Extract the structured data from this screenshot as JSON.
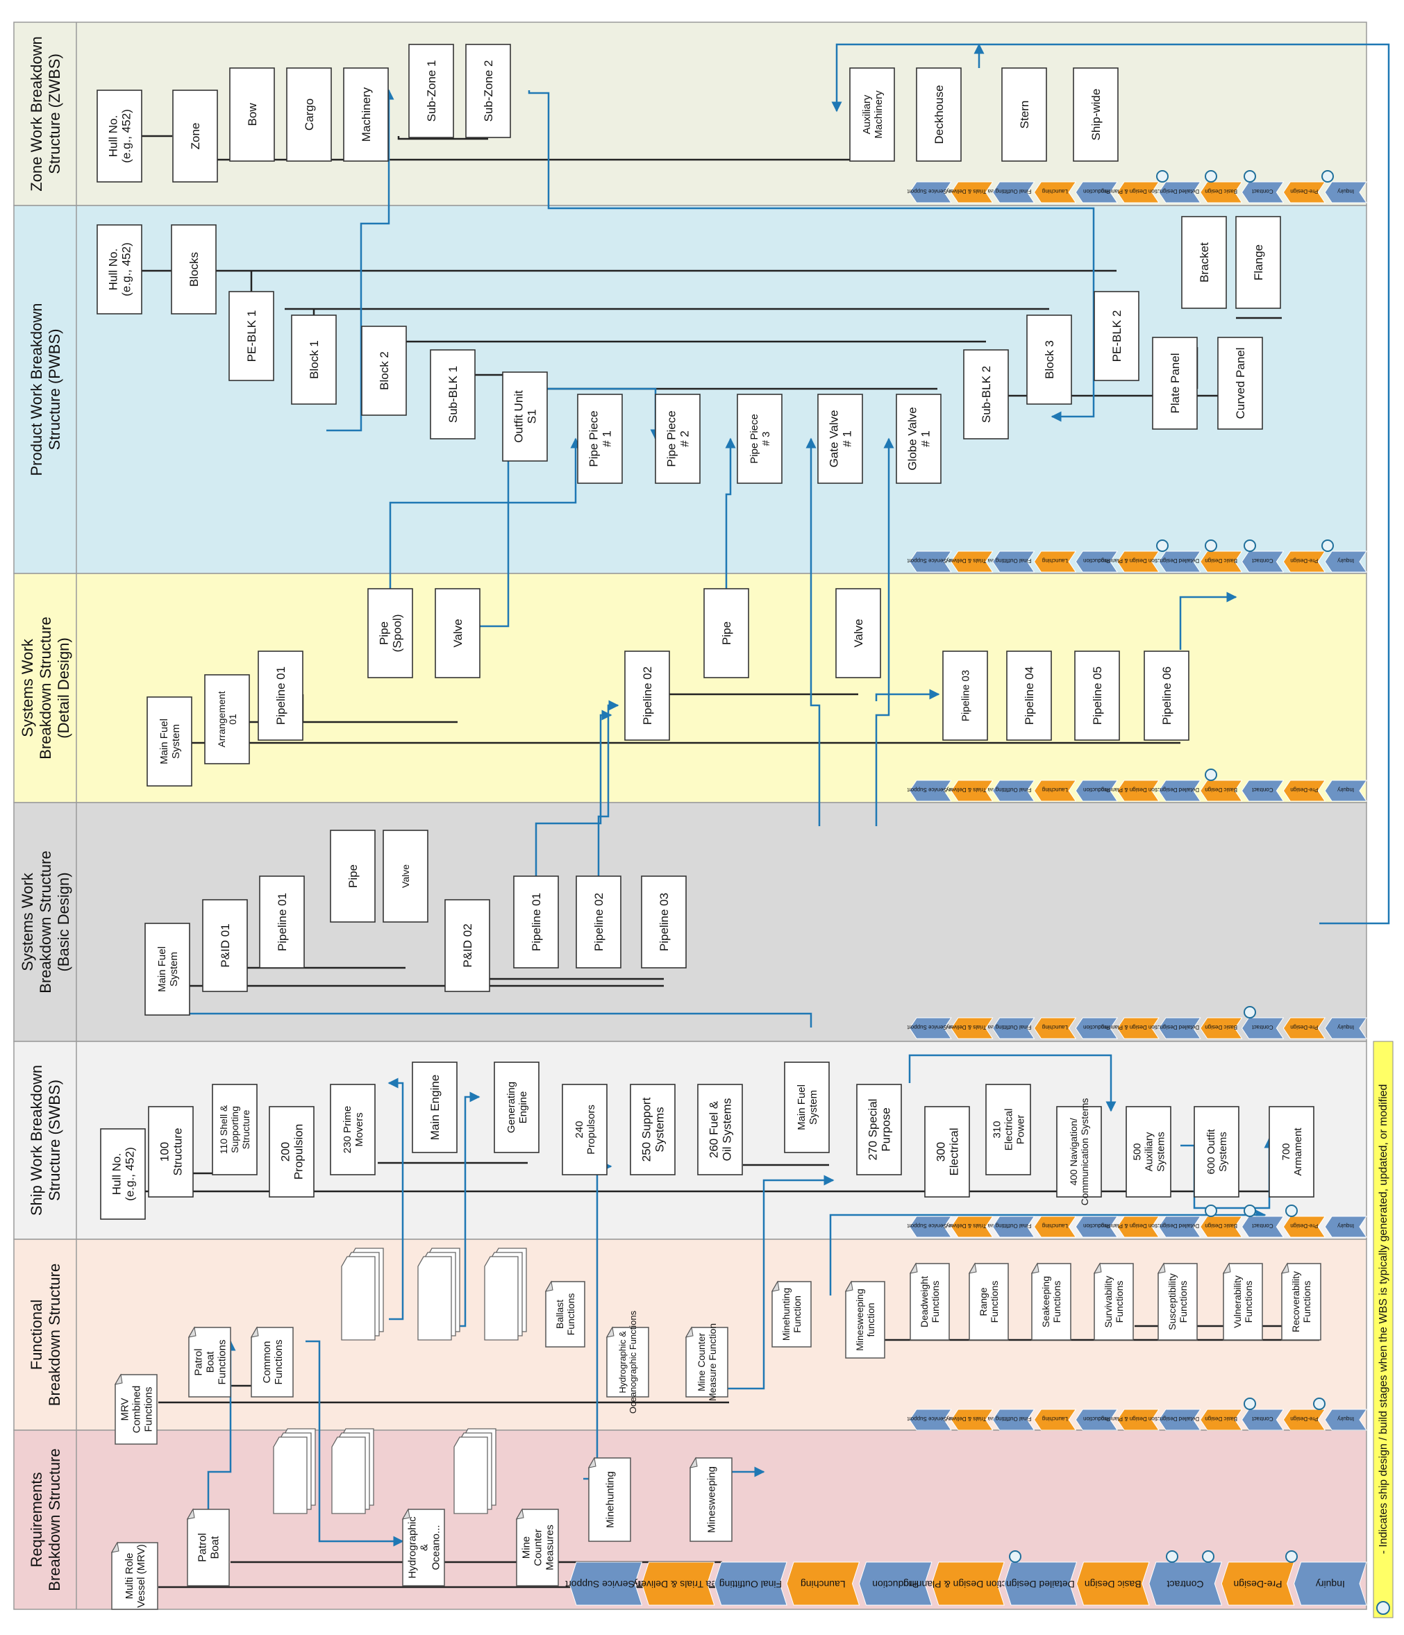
{
  "bands": [
    {
      "id": "zwbs",
      "title": [
        "Zone Work Breakdown",
        "Structure (ZWBS)"
      ],
      "color": "#eef0e2"
    },
    {
      "id": "pwbs",
      "title": [
        "Product Work Breakdown",
        "Structure (PWBS)"
      ],
      "color": "#d3ebf2"
    },
    {
      "id": "swbs_detail",
      "title": [
        "Systems Work",
        "Breakdown Structure",
        "(Detail Design)"
      ],
      "color": "#fdfbc6"
    },
    {
      "id": "swbs_basic",
      "title": [
        "Systems Work",
        "Breakdown Structure",
        "(Basic Design)"
      ],
      "color": "#d9d9d9"
    },
    {
      "id": "ship_swbs",
      "title": [
        "Ship Work Breakdown",
        "Structure (SWBS)"
      ],
      "color": "#f1f1f1"
    },
    {
      "id": "functional",
      "title": [
        "Functional",
        "Breakdown Structure"
      ],
      "color": "#fbe9df"
    },
    {
      "id": "requirements",
      "title": [
        "Requirements",
        "Breakdown Structure"
      ],
      "color": "#f0d0d2"
    }
  ],
  "stages": [
    "Inquiry",
    "Pre-Design",
    "Contract",
    "Basic Design",
    "Detailed Design",
    "Production Design & Planning",
    "Production",
    "Launching",
    "Final Outfitting",
    "Sea Trials & Delivery",
    "In-Service Support"
  ],
  "stage_colors": {
    "blue": "#6c93c4",
    "orange": "#f39a1e"
  },
  "nodes": {
    "zwbs": [
      "Hull No. (e.g., 452)",
      "Zone",
      "Bow",
      "Cargo",
      "Machinery",
      "Sub-Zone 1",
      "Sub-Zone 2",
      "Auxiliary Machinery",
      "Deckhouse",
      "Stern",
      "Ship-wide"
    ],
    "pwbs": [
      "Hull No. (e.g., 452)",
      "Blocks",
      "PE-BLK 1",
      "Block 1",
      "Block 2",
      "Sub-BLK 1",
      "Outfit Unit S1",
      "Pipe Piece # 1",
      "Pipe Piece # 2",
      "Pipe Piece # 3",
      "Gate Valve # 1",
      "Globe Valve # 1",
      "Sub-BLK 2",
      "Block 3",
      "PE-BLK 2",
      "Plate Panel",
      "Curved Panel",
      "Bracket",
      "Flange"
    ],
    "swbs_detail": [
      "Main Fuel System",
      "Arrangement 01",
      "Pipeline 01",
      "Pipe (Spool)",
      "Valve",
      "Pipeline 02",
      "Pipe",
      "Valve",
      "Pipeline 03",
      "Pipeline 04",
      "Pipeline 05",
      "Pipeline 06"
    ],
    "swbs_basic": [
      "Main Fuel System",
      "P&ID 01",
      "Pipeline 01",
      "Pipe",
      "Valve",
      "P&ID 02",
      "Pipeline 01",
      "Pipeline 02",
      "Pipeline 03"
    ],
    "ship_swbs": [
      "Hull No. (e.g., 452)",
      "100 Structure",
      "110 Shell & Supporting Structure",
      "200 Propulsion",
      "230 Prime Movers",
      "Main Engine",
      "Generating Engine",
      "240 Propulsors",
      "250 Support Systems",
      "260 Fuel & Oil Systems",
      "Main Fuel System",
      "270 Special Purpose",
      "300 Electrical",
      "310 Electrical Power",
      "400 Navigation/ Communication Systems",
      "500 Auxiliary Systems",
      "600 Outfit Systems",
      "700 Armament"
    ],
    "functional": [
      "MRV Combined Functions",
      "Patrol Boat Functions",
      "Common Functions",
      "Ballast Functions",
      "Hydrographic & Oceanographic Functions",
      "Mine Counter Measure Function",
      "Minehunting Function",
      "Minesweeping function",
      "Deadweight Functions",
      "Range Functions",
      "Seakeeping Functions",
      "Survivability Functions",
      "Susceptibility Functions",
      "Vulnerability Functions",
      "Recoverability Functions"
    ],
    "requirements": [
      "Multi Role Vessel (MRV)",
      "Patrol Boat",
      "Hydrographic & Oceano...",
      "Mine Counter Measures",
      "Minehunting",
      "Minesweeping"
    ]
  },
  "legend": {
    "text": "- Indicates ship design / build stages when the WBS is typically generated, updated, or modified",
    "color": "#ffff66"
  }
}
